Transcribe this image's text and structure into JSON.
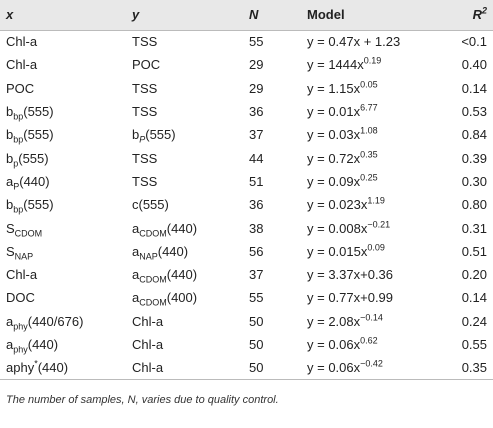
{
  "table": {
    "header": [
      [
        {
          "text": "x"
        }
      ],
      [
        {
          "text": "y"
        }
      ],
      [
        {
          "text": "N"
        }
      ],
      [
        {
          "text": "Model"
        }
      ],
      [
        {
          "text": "R"
        },
        {
          "sup": "2"
        }
      ]
    ],
    "rows": [
      [
        [
          {
            "text": "Chl-a"
          }
        ],
        [
          {
            "text": "TSS"
          }
        ],
        [
          {
            "text": 55
          }
        ],
        [
          {
            "text": "y = 0.47x + 1.23"
          }
        ],
        [
          {
            "text": "<0.1"
          }
        ]
      ],
      [
        [
          {
            "text": "Chl-a"
          }
        ],
        [
          {
            "text": "POC"
          }
        ],
        [
          {
            "text": 29
          }
        ],
        [
          {
            "text": "y = 1444x"
          },
          {
            "sup": "0.19"
          }
        ],
        [
          {
            "text": "0.40"
          }
        ]
      ],
      [
        [
          {
            "text": "POC"
          }
        ],
        [
          {
            "text": "TSS"
          }
        ],
        [
          {
            "text": 29
          }
        ],
        [
          {
            "text": "y = 1.15x"
          },
          {
            "sup": "0.05"
          }
        ],
        [
          {
            "text": "0.14"
          }
        ]
      ],
      [
        [
          {
            "text": "b"
          },
          {
            "sub": "bp"
          },
          {
            "text": "(555)"
          }
        ],
        [
          {
            "text": "TSS"
          }
        ],
        [
          {
            "text": 36
          }
        ],
        [
          {
            "text": "y = 0.01x"
          },
          {
            "sup": "6.77"
          }
        ],
        [
          {
            "text": "0.53"
          }
        ]
      ],
      [
        [
          {
            "text": "b"
          },
          {
            "sub": "bp"
          },
          {
            "text": "(555)"
          }
        ],
        [
          {
            "text": "b"
          },
          {
            "italic_sub": "P"
          },
          {
            "text": "(555)"
          }
        ],
        [
          {
            "text": 37
          }
        ],
        [
          {
            "text": "y = 0.03x"
          },
          {
            "sup": "1.08"
          }
        ],
        [
          {
            "text": "0.84"
          }
        ]
      ],
      [
        [
          {
            "text": "b"
          },
          {
            "sub": "p"
          },
          {
            "text": "(555)"
          }
        ],
        [
          {
            "text": "TSS"
          }
        ],
        [
          {
            "text": 44
          }
        ],
        [
          {
            "text": "y = 0.72x"
          },
          {
            "sup": "0.35"
          }
        ],
        [
          {
            "text": "0.39"
          }
        ]
      ],
      [
        [
          {
            "text": "a"
          },
          {
            "sub": "P"
          },
          {
            "text": "(440)"
          }
        ],
        [
          {
            "text": "TSS"
          }
        ],
        [
          {
            "text": 51
          }
        ],
        [
          {
            "text": "y = 0.09x"
          },
          {
            "sup": "0.25"
          }
        ],
        [
          {
            "text": "0.30"
          }
        ]
      ],
      [
        [
          {
            "text": "b"
          },
          {
            "sub": "bp"
          },
          {
            "text": "(555)"
          }
        ],
        [
          {
            "text": "c(555)"
          }
        ],
        [
          {
            "text": 36
          }
        ],
        [
          {
            "text": "y = 0.023x"
          },
          {
            "sup": "1.19"
          }
        ],
        [
          {
            "text": "0.80"
          }
        ]
      ],
      [
        [
          {
            "text": "S"
          },
          {
            "sub": "CDOM"
          }
        ],
        [
          {
            "text": "a"
          },
          {
            "sub": "CDOM"
          },
          {
            "text": "(440)"
          }
        ],
        [
          {
            "text": 38
          }
        ],
        [
          {
            "text": "y = 0.008x"
          },
          {
            "sup": "−0.21"
          }
        ],
        [
          {
            "text": "0.31"
          }
        ]
      ],
      [
        [
          {
            "text": "S"
          },
          {
            "sub": "NAP"
          }
        ],
        [
          {
            "text": "a"
          },
          {
            "sub": "NAP"
          },
          {
            "text": "(440)"
          }
        ],
        [
          {
            "text": 56
          }
        ],
        [
          {
            "text": "y = 0.015x"
          },
          {
            "sup": "0.09"
          }
        ],
        [
          {
            "text": "0.51"
          }
        ]
      ],
      [
        [
          {
            "text": "Chl-a"
          }
        ],
        [
          {
            "text": "a"
          },
          {
            "sub": "CDOM"
          },
          {
            "text": "(440)"
          }
        ],
        [
          {
            "text": 37
          }
        ],
        [
          {
            "text": "y = 3.37x+0.36"
          }
        ],
        [
          {
            "text": "0.20"
          }
        ]
      ],
      [
        [
          {
            "text": "DOC"
          }
        ],
        [
          {
            "text": "a"
          },
          {
            "sub": "CDOM"
          },
          {
            "text": "(400)"
          }
        ],
        [
          {
            "text": 55
          }
        ],
        [
          {
            "text": "y = 0.77x+0.99"
          }
        ],
        [
          {
            "text": "0.14"
          }
        ]
      ],
      [
        [
          {
            "text": "a"
          },
          {
            "sub": "phy"
          },
          {
            "text": "(440/676)"
          }
        ],
        [
          {
            "text": "Chl-a"
          }
        ],
        [
          {
            "text": 50
          }
        ],
        [
          {
            "text": "y = 2.08x"
          },
          {
            "sup": "−0.14"
          }
        ],
        [
          {
            "text": "0.24"
          }
        ]
      ],
      [
        [
          {
            "text": "a"
          },
          {
            "sub": "phy"
          },
          {
            "text": "(440)"
          }
        ],
        [
          {
            "text": "Chl-a"
          }
        ],
        [
          {
            "text": 50
          }
        ],
        [
          {
            "text": "y = 0.06x"
          },
          {
            "sup": "0.62"
          }
        ],
        [
          {
            "text": "0.55"
          }
        ]
      ],
      [
        [
          {
            "text": "aphy"
          },
          {
            "sup": "*"
          },
          {
            "text": "(440)"
          }
        ],
        [
          {
            "text": "Chl-a"
          }
        ],
        [
          {
            "text": 50
          }
        ],
        [
          {
            "text": "y = 0.06x"
          },
          {
            "sup": "−0.42"
          }
        ],
        [
          {
            "text": "0.35"
          }
        ]
      ]
    ],
    "footnote": "The number of samples, N, varies due to quality control."
  }
}
